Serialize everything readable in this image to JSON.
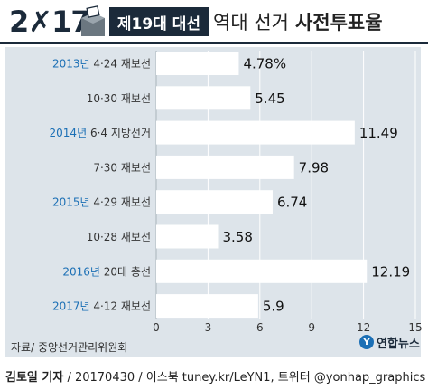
{
  "header": {
    "logo_text": "2✗17",
    "badge": "제19대 대선",
    "title_light": "역대 선거",
    "title_bold": "사전투표율"
  },
  "colors": {
    "bar": "#ffffff",
    "panel": "#dde4ea",
    "navy": "#1b2a3a",
    "year_blue": "#1b6fb5",
    "label": "#333333",
    "grid": "#ffffff",
    "yonhap_blue": "#1b6fb5"
  },
  "chart_data": {
    "type": "bar",
    "orientation": "horizontal",
    "categories": [
      {
        "year": "2013년",
        "label": "4·24 재보선"
      },
      {
        "year": "",
        "label": "10·30 재보선"
      },
      {
        "year": "2014년",
        "label": "6·4 지방선거"
      },
      {
        "year": "",
        "label": "7·30 재보선"
      },
      {
        "year": "2015년",
        "label": "4·29 재보선"
      },
      {
        "year": "",
        "label": "10·28 재보선"
      },
      {
        "year": "2016년",
        "label": "20대 총선"
      },
      {
        "year": "2017년",
        "label": "4·12 재보선"
      }
    ],
    "values": [
      4.78,
      5.45,
      11.49,
      7.98,
      6.74,
      3.58,
      12.19,
      5.9
    ],
    "value_labels": [
      "4.78%",
      "5.45",
      "11.49",
      "7.98",
      "6.74",
      "3.58",
      "12.19",
      "5.9"
    ],
    "xlim": [
      0,
      15
    ],
    "xticks": [
      "0",
      "3",
      "6",
      "9",
      "12",
      "15"
    ],
    "xtick_values": [
      0,
      3,
      6,
      9,
      12,
      15
    ],
    "grid": true
  },
  "source": "자료/ 중앙선거관리위원회",
  "brand": {
    "mark": "Y",
    "name": "연합뉴스"
  },
  "credit": {
    "author": "김토일 기자",
    "rest": " / 20170430 / 이스북 tuney.kr/LeYN1, 트위터 @yonhap_graphics"
  }
}
